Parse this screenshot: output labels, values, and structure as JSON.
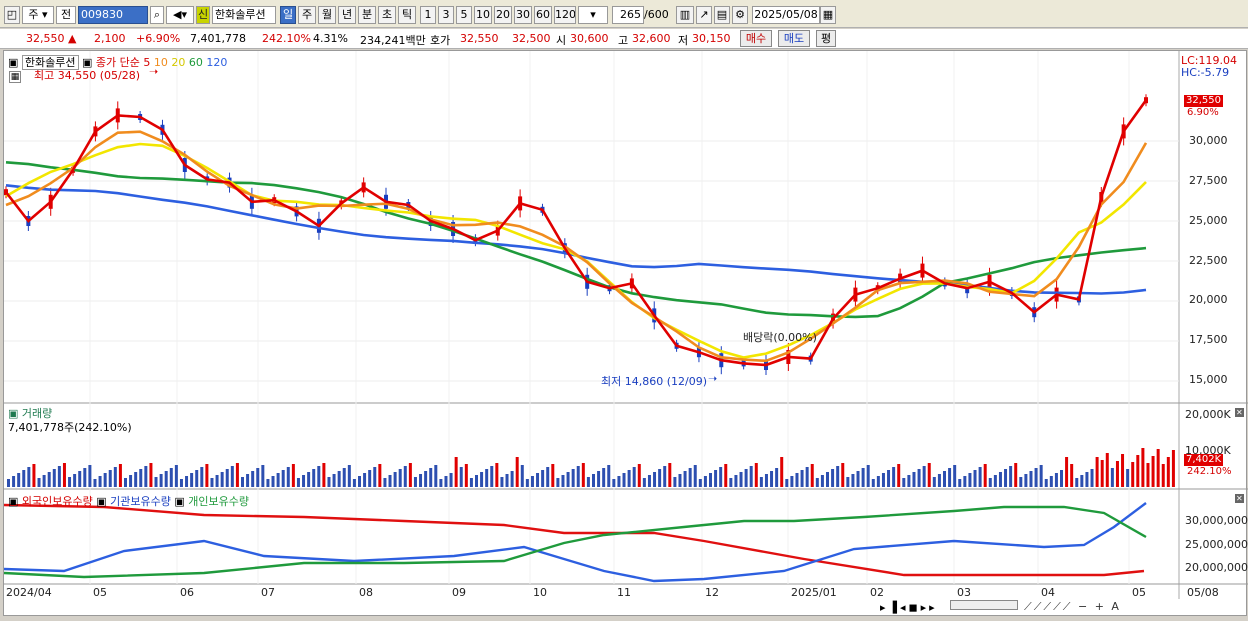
{
  "toolbar": {
    "market": "주",
    "kind": "전",
    "code": "009830",
    "name": "한화솔루션",
    "badge": "신",
    "periods": [
      "일",
      "주",
      "월",
      "년",
      "분",
      "초",
      "틱"
    ],
    "nums": [
      "1",
      "3",
      "5",
      "10",
      "20",
      "30",
      "60",
      "120"
    ],
    "count": "265",
    "count_total": "/600",
    "date": "2025/05/08"
  },
  "info": {
    "price": "32,550 ▲",
    "change": "2,100",
    "change_pct": "+6.90%",
    "volume": "7,401,778",
    "vol_ratio": "242.10%",
    "turnover": "4.31%",
    "amount": "234,241백만",
    "hoga_label": "호가",
    "ask": "32,550",
    "bid": "32,500",
    "open_label": "시",
    "open": "30,600",
    "high_label": "고",
    "high": "32,600",
    "low_label": "저",
    "low": "30,150",
    "buy": "매수",
    "sell": "매도",
    "avg": "평"
  },
  "price_panel": {
    "legend_name": "한화솔루션",
    "legend_type": "종가 단순",
    "ma": [
      "5",
      "10",
      "20",
      "60",
      "120"
    ],
    "max_note": "최고 34,550 (05/28)",
    "min_note": "최저 14,860 (12/09)",
    "ex_div": "배당락(0.00%)",
    "lc": "LC:119.04",
    "hc": "HC:-5.79",
    "last_price": "32,550",
    "last_pct": "6.90%",
    "ticks": [
      "30,000",
      "27,500",
      "25,000",
      "22,500",
      "20,000",
      "17,500",
      "15,000"
    ]
  },
  "volume_panel": {
    "title": "거래량",
    "value": "7,401,778주(242.10%)",
    "ticks": [
      "20,000K",
      "10,000K"
    ],
    "last": "7,402K",
    "last_pct": "242.10%"
  },
  "holding_panel": {
    "legend": [
      "외국인보유수량",
      "기관보유수량",
      "개인보유수량"
    ],
    "ticks": [
      "30,000,000",
      "25,000,000",
      "20,000,000"
    ]
  },
  "x_axis": [
    "2024/04",
    "05",
    "06",
    "07",
    "08",
    "09",
    "10",
    "11",
    "12",
    "2025/01",
    "02",
    "03",
    "04",
    "05",
    "05/08"
  ],
  "colors": {
    "ma5": "#e00000",
    "ma10": "#f08c1e",
    "ma20": "#f2e600",
    "ma60": "#1f9a3c",
    "ma120": "#2d5fe0",
    "foreign": "#e01010",
    "inst": "#2d5fe0",
    "indiv": "#1f9a3c"
  },
  "chart_data": {
    "type": "line",
    "series": [
      {
        "name": "5",
        "values": [
          26800,
          25000,
          26200,
          28200,
          30600,
          31600,
          31500,
          30700,
          28500,
          27600,
          27400,
          26200,
          26300,
          25600,
          24700,
          26100,
          27100,
          26200,
          26000,
          25000,
          24500,
          23800,
          24400,
          26100,
          25700,
          23300,
          21200,
          20800,
          21100,
          19100,
          17200,
          16800,
          16300,
          16100,
          16000,
          16500,
          16400,
          18900,
          20400,
          20800,
          21400,
          21900,
          21100,
          20800,
          21200,
          20500,
          19300,
          20400,
          20100,
          26500,
          30600,
          32550
        ]
      }
    ]
  }
}
